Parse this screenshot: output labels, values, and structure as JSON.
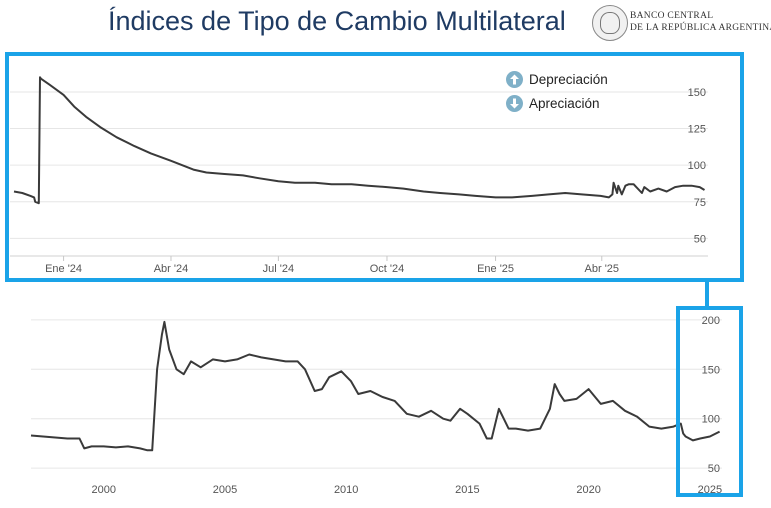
{
  "header": {
    "title": "Índices de Tipo de Cambio Multilateral",
    "logo_text_line1": "BANCO CENTRAL",
    "logo_text_line2": "DE LA REPÚBLICA ARGENTINA"
  },
  "legend": {
    "up_label": "Depreciación",
    "down_label": "Apreciación",
    "up_icon": "arrow-up-circle-icon",
    "down_icon": "arrow-down-circle-icon",
    "icon_color": "#7fb0c8"
  },
  "colors": {
    "frame": "#1aa3e8",
    "line": "#3a3a3a",
    "grid": "#e6e6e6",
    "tick": "#555555"
  },
  "chart_data": [
    {
      "type": "line",
      "title": "",
      "xlabel": "",
      "ylabel": "",
      "x_ticks": [
        "Ene '24",
        "Abr '24",
        "Jul '24",
        "Oct '24",
        "Ene '25",
        "Abr '25"
      ],
      "y_ticks": [
        50,
        75,
        100,
        125,
        150
      ],
      "ylim": [
        40,
        165
      ],
      "xlim": [
        "2023-11-20",
        "2025-06-30"
      ],
      "grid": true,
      "series": [
        {
          "x": [
            "2023-11-20",
            "2023-11-27",
            "2023-12-04",
            "2023-12-07",
            "2023-12-08",
            "2023-12-11",
            "2023-12-12",
            "2023-12-13",
            "2023-12-20",
            "2024-01-01",
            "2024-01-10",
            "2024-01-20",
            "2024-02-01",
            "2024-02-15",
            "2024-03-01",
            "2024-03-15",
            "2024-04-01",
            "2024-04-20",
            "2024-05-01",
            "2024-05-15",
            "2024-06-01",
            "2024-06-15",
            "2024-07-01",
            "2024-07-15",
            "2024-08-01",
            "2024-08-15",
            "2024-09-01",
            "2024-09-15",
            "2024-10-01",
            "2024-10-15",
            "2024-11-01",
            "2024-11-15",
            "2024-12-01",
            "2024-12-15",
            "2025-01-01",
            "2025-01-15",
            "2025-02-01",
            "2025-02-15",
            "2025-03-01",
            "2025-03-15",
            "2025-03-31",
            "2025-04-07",
            "2025-04-10",
            "2025-04-11",
            "2025-04-14",
            "2025-04-15",
            "2025-04-18",
            "2025-04-21",
            "2025-04-24",
            "2025-04-28",
            "2025-05-05",
            "2025-05-07",
            "2025-05-12",
            "2025-05-19",
            "2025-05-26",
            "2025-06-02",
            "2025-06-09",
            "2025-06-16",
            "2025-06-23",
            "2025-06-27"
          ],
          "y": [
            82,
            81,
            79,
            78,
            75,
            74,
            160,
            159,
            155,
            148,
            140,
            133,
            126,
            119,
            113,
            108,
            103,
            97,
            95,
            94,
            93,
            91,
            89,
            88,
            88,
            87,
            87,
            86,
            85,
            84,
            82,
            81,
            80,
            79,
            78,
            78,
            79,
            80,
            81,
            80,
            79,
            78,
            80,
            88,
            81,
            86,
            80,
            86,
            87,
            87,
            81,
            85,
            82,
            84,
            82,
            85,
            86,
            86,
            85,
            83
          ]
        }
      ]
    },
    {
      "type": "line",
      "title": "",
      "xlabel": "",
      "ylabel": "",
      "x_ticks": [
        "2000",
        "2005",
        "2010",
        "2015",
        "2020",
        "2025"
      ],
      "y_ticks": [
        50,
        100,
        150,
        200
      ],
      "ylim": [
        40,
        210
      ],
      "xlim": [
        1997.0,
        2025.5
      ],
      "grid": true,
      "series": [
        {
          "x": [
            1997.0,
            1997.5,
            1998.0,
            1998.5,
            1999.0,
            1999.2,
            1999.5,
            2000.0,
            2000.5,
            2001.0,
            2001.5,
            2001.8,
            2002.0,
            2002.2,
            2002.4,
            2002.5,
            2002.7,
            2003.0,
            2003.3,
            2003.6,
            2004.0,
            2004.5,
            2005.0,
            2005.5,
            2006.0,
            2006.5,
            2007.0,
            2007.5,
            2008.0,
            2008.3,
            2008.7,
            2009.0,
            2009.3,
            2009.8,
            2010.2,
            2010.5,
            2011.0,
            2011.5,
            2012.0,
            2012.5,
            2013.0,
            2013.5,
            2014.0,
            2014.3,
            2014.7,
            2015.0,
            2015.5,
            2015.8,
            2016.0,
            2016.3,
            2016.7,
            2017.0,
            2017.5,
            2018.0,
            2018.4,
            2018.6,
            2018.8,
            2019.0,
            2019.5,
            2020.0,
            2020.5,
            2021.0,
            2021.5,
            2022.0,
            2022.5,
            2023.0,
            2023.5,
            2023.8,
            2023.9,
            2024.0,
            2024.3,
            2024.6,
            2025.0,
            2025.4
          ],
          "y": [
            83,
            82,
            81,
            80,
            80,
            70,
            72,
            72,
            71,
            72,
            70,
            68,
            68,
            150,
            185,
            198,
            170,
            150,
            145,
            158,
            152,
            160,
            158,
            160,
            165,
            162,
            160,
            158,
            158,
            150,
            128,
            130,
            142,
            148,
            138,
            125,
            128,
            122,
            118,
            105,
            102,
            108,
            100,
            98,
            110,
            105,
            95,
            80,
            80,
            110,
            90,
            90,
            88,
            90,
            110,
            135,
            125,
            118,
            120,
            130,
            115,
            118,
            108,
            102,
            92,
            90,
            92,
            95,
            85,
            82,
            78,
            80,
            82,
            87
          ]
        }
      ]
    }
  ]
}
